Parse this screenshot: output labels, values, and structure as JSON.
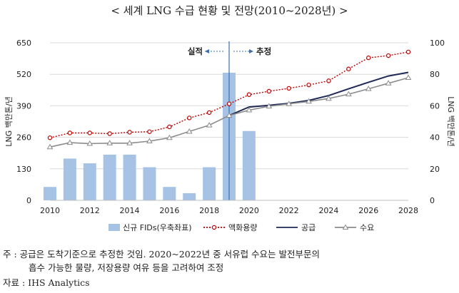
{
  "title": "< 세계 LNG 수급 현황 및 전망(2010~2028년) >",
  "notes": {
    "line1": "주 : 공급은 도착기준으로 추정한 것임. 2020~2022년 중 서유럽 수요는 발전부문의",
    "line2": "흡수 가능한 물량, 저장용량 여유 등을 고려하여 조정",
    "source": "자료 : IHS Analytics"
  },
  "chart_data": {
    "type": "bar+line",
    "x": [
      2010,
      2011,
      2012,
      2013,
      2014,
      2015,
      2016,
      2017,
      2018,
      2019,
      2020,
      2021,
      2022,
      2023,
      2024,
      2025,
      2026,
      2027,
      2028
    ],
    "x_ticks": [
      2010,
      2012,
      2014,
      2016,
      2018,
      2020,
      2022,
      2024,
      2026,
      2028
    ],
    "ylabel_left": "LNG 백만톤/년",
    "ylabel_right": "LNG 백만톤/년",
    "ylim_left": [
      0,
      650
    ],
    "yticks_left": [
      0,
      130,
      260,
      390,
      520,
      650
    ],
    "ylim_right": [
      0,
      100
    ],
    "yticks_right": [
      0,
      20,
      40,
      60,
      80,
      100
    ],
    "annotations": {
      "actual": "실적",
      "forecast": "추정",
      "divider_year": 2019
    },
    "grid": true,
    "legend_position": "bottom",
    "bars": {
      "name": "신규 FIDs(우축좌표)",
      "axis": "right",
      "color": "#a6c3e6",
      "values": [
        8.5,
        26.5,
        23.5,
        29,
        29,
        21,
        8.5,
        4.5,
        21,
        81,
        44,
        null,
        null,
        null,
        null,
        null,
        null,
        null,
        null
      ]
    },
    "series": [
      {
        "name": "액화용량",
        "axis": "left",
        "color": "#c00000",
        "style": "dotted-circle",
        "values": [
          258,
          278,
          278,
          275,
          281,
          283,
          303,
          340,
          362,
          398,
          436,
          450,
          462,
          476,
          493,
          542,
          588,
          597,
          612
        ]
      },
      {
        "name": "공급",
        "axis": "left",
        "color": "#1f2a56",
        "style": "solid",
        "values": [
          null,
          null,
          null,
          null,
          null,
          null,
          null,
          null,
          null,
          350,
          385,
          392,
          400,
          412,
          432,
          460,
          487,
          513,
          528
        ]
      },
      {
        "name": "수요",
        "axis": "left",
        "color": "#8c8c8c",
        "style": "triangle",
        "values": [
          220,
          238,
          234,
          236,
          236,
          244,
          258,
          284,
          310,
          350,
          372,
          388,
          398,
          408,
          420,
          438,
          460,
          483,
          506
        ]
      }
    ]
  }
}
